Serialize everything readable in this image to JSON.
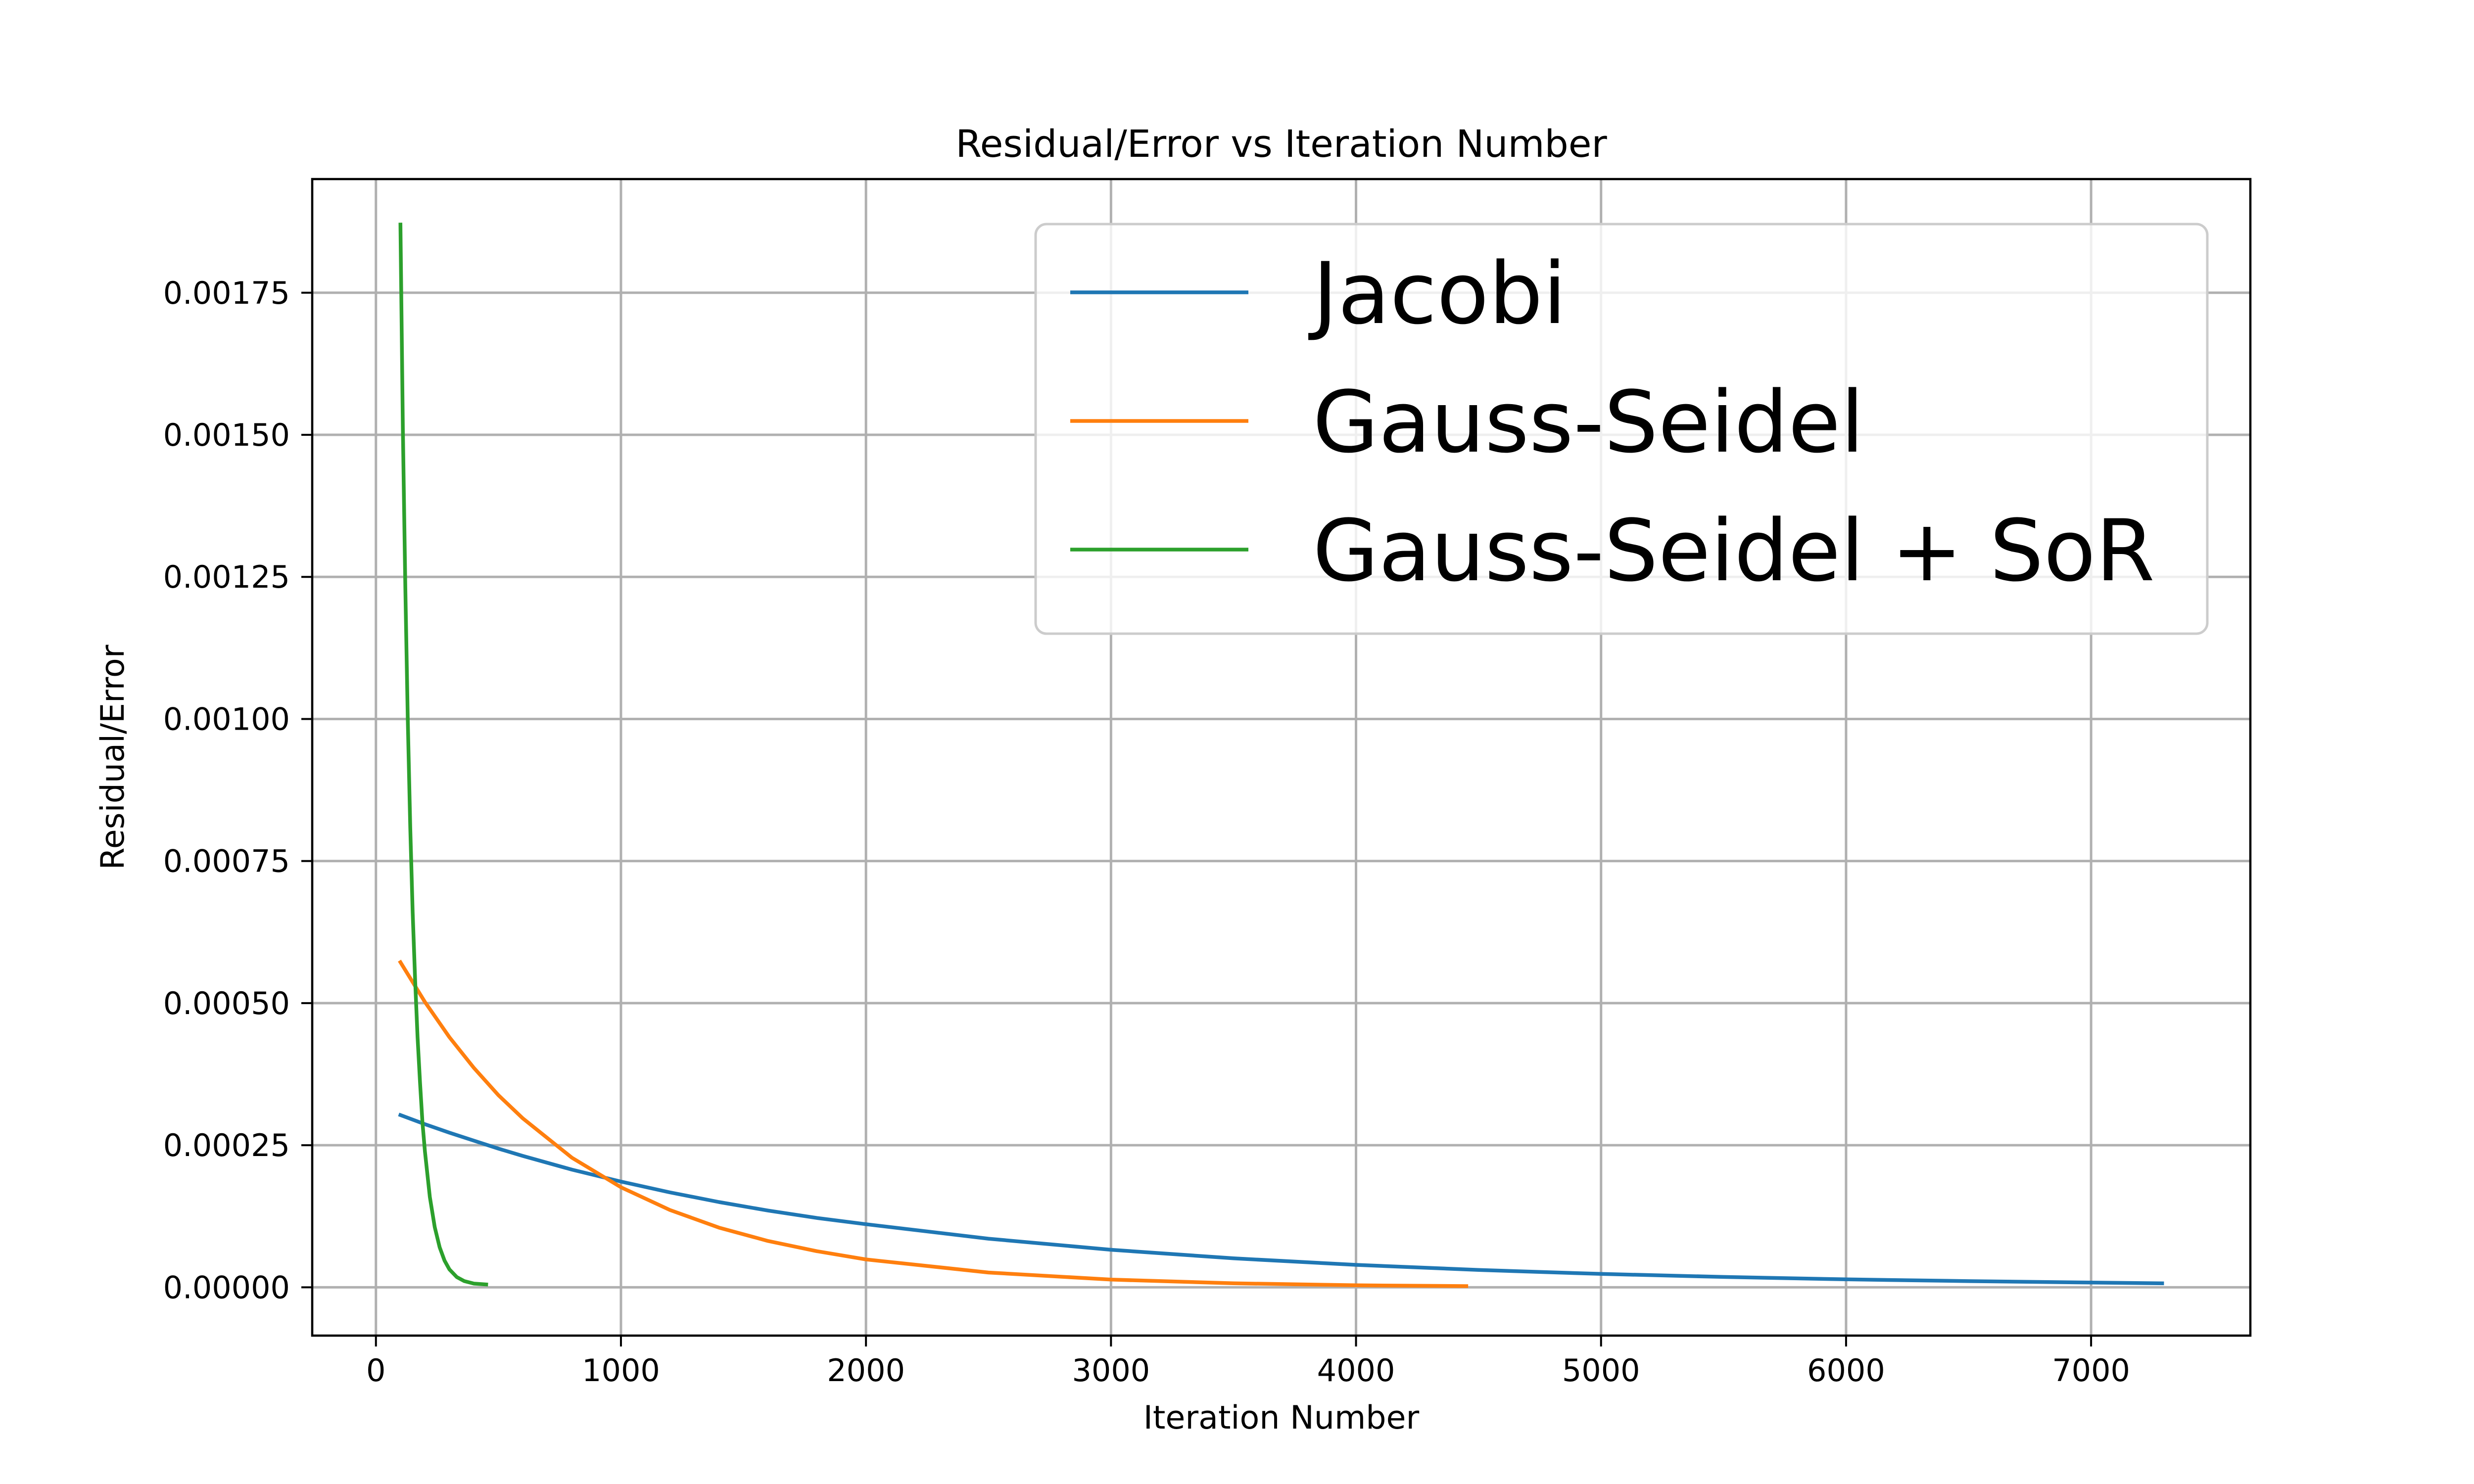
{
  "chart_data": {
    "type": "line",
    "title": "Residual/Error vs Iteration Number",
    "xlabel": "Iteration Number",
    "ylabel": "Residual/Error",
    "xlim": [
      -260,
      7650
    ],
    "ylim": [
      -8.5e-05,
      0.00195
    ],
    "xticks": [
      0,
      1000,
      2000,
      3000,
      4000,
      5000,
      6000,
      7000
    ],
    "xtick_labels": [
      "0",
      "1000",
      "2000",
      "3000",
      "4000",
      "5000",
      "6000",
      "7000"
    ],
    "yticks": [
      0,
      0.00025,
      0.0005,
      0.00075,
      0.001,
      0.00125,
      0.0015,
      0.00175
    ],
    "ytick_labels": [
      "0.00000",
      "0.00025",
      "0.00050",
      "0.00075",
      "0.00100",
      "0.00125",
      "0.00150",
      "0.00175"
    ],
    "grid": true,
    "legend_position": "top-right",
    "series": [
      {
        "name": "Jacobi",
        "color": "#1f77b4",
        "x": [
          100,
          200,
          300,
          400,
          500,
          600,
          800,
          1000,
          1200,
          1400,
          1600,
          1800,
          2000,
          2500,
          3000,
          3500,
          4000,
          4500,
          5000,
          5500,
          6000,
          6500,
          7000,
          7290
        ],
        "y": [
          0.000303,
          0.000287,
          0.000272,
          0.000258,
          0.000244,
          0.000231,
          0.000207,
          0.000186,
          0.000167,
          0.00015,
          0.000135,
          0.000122,
          0.000111,
          8.55e-05,
          6.6e-05,
          5.1e-05,
          3.95e-05,
          3.05e-05,
          2.35e-05,
          1.82e-05,
          1.4e-05,
          1.08e-05,
          8.3e-06,
          7e-06
        ]
      },
      {
        "name": "Gauss-Seidel",
        "color": "#ff7f0e",
        "x": [
          100,
          200,
          300,
          400,
          500,
          600,
          800,
          1000,
          1200,
          1400,
          1600,
          1800,
          2000,
          2500,
          3000,
          3500,
          4000,
          4450
        ],
        "y": [
          0.000572,
          0.000502,
          0.00044,
          0.000386,
          0.000338,
          0.000297,
          0.000228,
          0.000176,
          0.000136,
          0.000105,
          8.15e-05,
          6.35e-05,
          4.9e-05,
          2.6e-05,
          1.35e-05,
          7e-06,
          3.5e-06,
          2e-06
        ]
      },
      {
        "name": "Gauss-Seidel + SoR",
        "color": "#2ca02c",
        "x": [
          100,
          110,
          120,
          130,
          140,
          150,
          160,
          170,
          180,
          190,
          200,
          220,
          240,
          260,
          280,
          300,
          330,
          360,
          400,
          450
        ],
        "y": [
          0.00187,
          0.00151,
          0.00123,
          0.001,
          0.00081,
          0.00066,
          0.00054,
          0.00044,
          0.00036,
          0.00029,
          0.000239,
          0.000159,
          0.000106,
          7.05e-05,
          4.7e-05,
          3.15e-05,
          1.8e-05,
          1.1e-05,
          6.5e-06,
          5e-06
        ]
      }
    ]
  }
}
